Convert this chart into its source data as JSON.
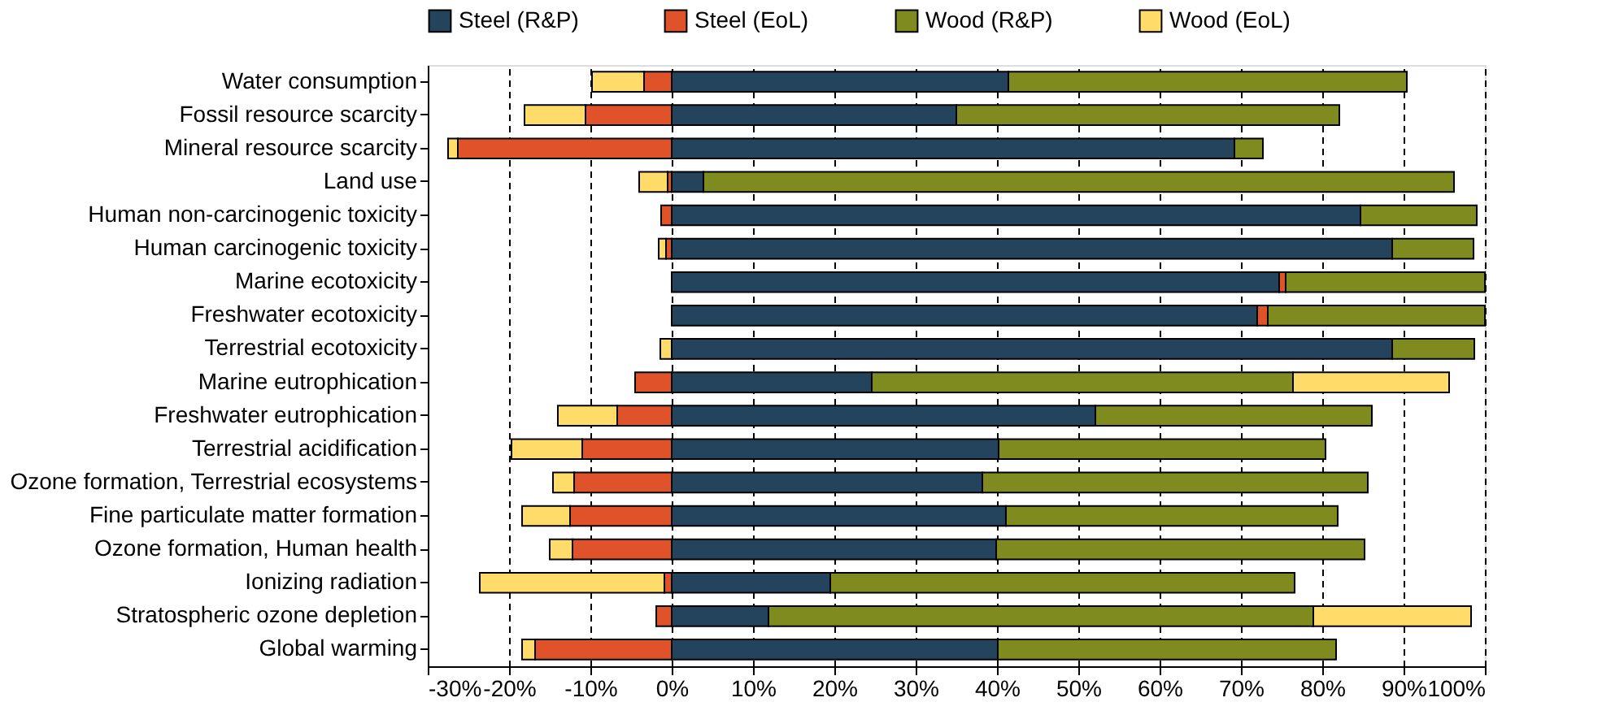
{
  "chart_data": {
    "type": "bar",
    "orientation": "horizontal",
    "stacked": true,
    "categories": [
      "Water consumption",
      "Fossil resource scarcity",
      "Mineral resource scarcity",
      "Land use",
      "Human non-carcinogenic toxicity",
      "Human carcinogenic toxicity",
      "Marine ecotoxicity",
      "Freshwater ecotoxicity",
      "Terrestrial ecotoxicity",
      "Marine eutrophication",
      "Freshwater eutrophication",
      "Terrestrial acidification",
      "Ozone formation, Terrestrial ecosystems",
      "Fine particulate matter formation",
      "Ozone formation, Human health",
      "Ionizing radiation",
      "Stratospheric ozone depletion",
      "Global warming"
    ],
    "series": [
      {
        "name": "Steel (R&P)",
        "color": "#23445c",
        "values": [
          41.4,
          35.0,
          69.2,
          3.9,
          84.7,
          88.6,
          74.7,
          72.0,
          88.6,
          24.6,
          52.1,
          40.2,
          38.2,
          41.1,
          39.9,
          19.5,
          11.9,
          40.1
        ]
      },
      {
        "name": "Steel (EoL)",
        "color": "#e0532a",
        "values": [
          -3.4,
          -10.6,
          -26.3,
          -0.5,
          -1.3,
          -0.7,
          0.8,
          1.3,
          null,
          -4.5,
          -6.7,
          -11.0,
          -12.0,
          -12.5,
          -12.2,
          -0.9,
          -1.9,
          -16.8
        ]
      },
      {
        "name": "Wood (R&P)",
        "color": "#7f8a1f",
        "values": [
          49.0,
          47.1,
          3.5,
          92.3,
          14.3,
          10.0,
          24.5,
          26.7,
          10.1,
          51.8,
          34.0,
          40.2,
          47.4,
          40.8,
          45.3,
          57.1,
          67.0,
          41.6
        ]
      },
      {
        "name": "Wood (EoL)",
        "color": "#ffdc6a",
        "values": [
          -6.4,
          -7.5,
          -1.2,
          -3.5,
          null,
          -0.9,
          null,
          null,
          -1.4,
          19.2,
          -7.3,
          -8.7,
          -2.6,
          -5.9,
          -2.8,
          -22.7,
          19.4,
          -1.6
        ]
      }
    ],
    "xlim": [
      -30,
      100
    ],
    "xticks": [
      {
        "value": -30,
        "label": "-30%"
      },
      {
        "value": -20,
        "label": "-20%"
      },
      {
        "value": -10,
        "label": "-10%"
      },
      {
        "value": 0,
        "label": "0%"
      },
      {
        "value": 10,
        "label": "10%"
      },
      {
        "value": 20,
        "label": "20%"
      },
      {
        "value": 30,
        "label": "30%"
      },
      {
        "value": 40,
        "label": "40%"
      },
      {
        "value": 50,
        "label": "50%"
      },
      {
        "value": 60,
        "label": "60%"
      },
      {
        "value": 70,
        "label": "70%"
      },
      {
        "value": 80,
        "label": "80%"
      },
      {
        "value": 90,
        "label": "90%"
      },
      {
        "value": 100,
        "label": "100%"
      }
    ],
    "grid": "x",
    "legend": "top"
  }
}
